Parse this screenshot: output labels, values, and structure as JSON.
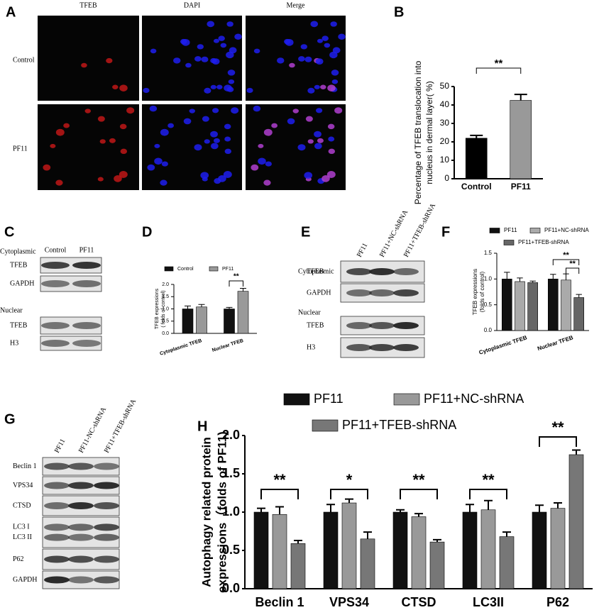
{
  "panel_a": {
    "panel_label": "A",
    "columns": [
      "TFEB",
      "DAPI",
      "Merge"
    ],
    "rows": [
      "Control",
      "PF11"
    ]
  },
  "blot_c": {
    "panel_label": "C",
    "lanes": [
      "Control",
      "PF11"
    ],
    "sections": [
      {
        "name": "Cytoplasmic",
        "rows": [
          [
            "TFEB"
          ],
          [
            "GAPDH"
          ]
        ]
      },
      {
        "name": "Nuclear",
        "rows": [
          [
            "TFEB"
          ],
          [
            "H3"
          ]
        ]
      }
    ]
  },
  "blot_e": {
    "panel_label": "E",
    "lanes": [
      "PF11",
      "PF11+NC-shRNA",
      "PF11+TFEB-shRNA"
    ],
    "sections": [
      {
        "name": "Cytoplasmic",
        "rows": [
          [
            "TFEB"
          ],
          [
            "GAPDH"
          ]
        ]
      },
      {
        "name": "Nuclear",
        "rows": [
          [
            "TFEB"
          ],
          [
            "H3"
          ]
        ]
      }
    ]
  },
  "blot_g": {
    "panel_label": "G",
    "lanes": [
      "PF11",
      "PF11-NC-shRNA",
      "PF11+TFEB-shRNA"
    ],
    "rows": [
      [
        "Beclin 1"
      ],
      [
        "VPS34"
      ],
      [
        "CTSD"
      ],
      [
        "LC3 I",
        "LC3 II"
      ],
      [
        "P62"
      ],
      [
        "GAPDH"
      ]
    ]
  },
  "chart_data": [
    {
      "type": "bar",
      "panel_label": "B",
      "y_label": [
        "Percentage of TFEB translocation into",
        "nucleus in dermal layer( %)"
      ],
      "categories": [
        "Control",
        "PF11"
      ],
      "values": [
        22,
        42.5
      ],
      "errors": [
        1.5,
        3.2
      ],
      "colors": [
        "#000000",
        "#999999"
      ],
      "ylim": [
        0,
        50
      ],
      "yticks": [
        0,
        10,
        20,
        30,
        40,
        50
      ],
      "annotations": [
        "**"
      ]
    },
    {
      "type": "bar",
      "panel_label": "D",
      "y_label": [
        "TFEB expressions",
        "( folds of control)"
      ],
      "categories": [
        "Cytoplasmic TFEB",
        "Nuclear TFEB"
      ],
      "series": [
        {
          "name": "Control",
          "color": "#111111",
          "values": [
            1.0,
            1.0
          ],
          "errors": [
            0.12,
            0.06
          ]
        },
        {
          "name": "PF11",
          "color": "#999999",
          "values": [
            1.08,
            1.72
          ],
          "errors": [
            0.1,
            0.12
          ]
        }
      ],
      "ylim": [
        0,
        2
      ],
      "yticks": [
        {
          "value": 0,
          "label": "0.0"
        },
        0.5,
        {
          "value": 1,
          "label": "1.0"
        },
        1.5,
        {
          "value": 2,
          "label": "2.0"
        }
      ],
      "annotations": [
        "**"
      ]
    },
    {
      "type": "bar",
      "panel_label": "F",
      "y_label": [
        "TFEB expressions",
        "(folds of control)"
      ],
      "categories": [
        "Cytoplasmic TFEB",
        "Nuclear TFEB"
      ],
      "series": [
        {
          "name": "PF11",
          "color": "#111111",
          "values": [
            1.0,
            1.0
          ],
          "errors": [
            0.13,
            0.09
          ]
        },
        {
          "name": "PF11+NC-shRNA",
          "color": "#aaaaaa",
          "values": [
            0.95,
            0.98
          ],
          "errors": [
            0.07,
            0.12
          ]
        },
        {
          "name": "PF11+TFEB-shRNA",
          "color": "#666666",
          "values": [
            0.93,
            0.64
          ],
          "errors": [
            0.03,
            0.06
          ]
        }
      ],
      "ylim": [
        0,
        1.5
      ],
      "yticks": [
        {
          "value": 0,
          "label": "0.0"
        },
        0.5,
        {
          "value": 1,
          "label": "1.0"
        },
        1.5
      ],
      "annotations": [
        "**",
        "**"
      ]
    },
    {
      "type": "bar",
      "panel_label": "H",
      "y_label": [
        "Autophagy related protein",
        "expressions（folds of PF11)"
      ],
      "categories": [
        "Beclin 1",
        "VPS34",
        "CTSD",
        "LC3II",
        "P62"
      ],
      "series": [
        {
          "name": "PF11",
          "color": "#111111",
          "values": [
            1.0,
            1.0,
            1.0,
            1.0,
            1.0
          ],
          "errors": [
            0.05,
            0.1,
            0.03,
            0.1,
            0.09
          ]
        },
        {
          "name": "PF11+NC-shRNA",
          "color": "#999999",
          "values": [
            0.97,
            1.12,
            0.94,
            1.03,
            1.05
          ],
          "errors": [
            0.1,
            0.05,
            0.04,
            0.12,
            0.07
          ]
        },
        {
          "name": "PF11+TFEB-shRNA",
          "color": "#777777",
          "values": [
            0.59,
            0.65,
            0.61,
            0.68,
            1.75
          ],
          "errors": [
            0.04,
            0.09,
            0.03,
            0.06,
            0.06
          ]
        }
      ],
      "ylim": [
        0,
        2
      ],
      "yticks": [
        {
          "value": 0,
          "label": "0.0"
        },
        0.5,
        {
          "value": 1,
          "label": "1.0"
        },
        1.5,
        {
          "value": 2,
          "label": "2.0"
        }
      ],
      "annotations": [
        "**",
        "*",
        "**",
        "**",
        "**"
      ]
    }
  ]
}
